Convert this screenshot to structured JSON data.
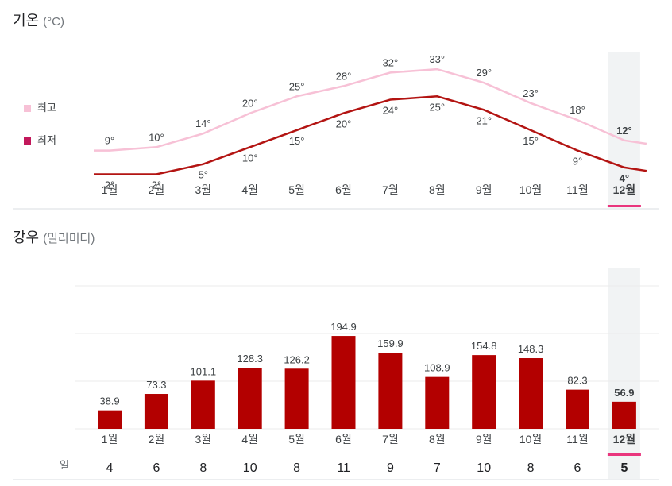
{
  "temperature": {
    "title": "기온",
    "unit": "(°C)",
    "legend_high": "최고",
    "legend_low": "최저"
  },
  "precipitation": {
    "title": "강우",
    "unit": "(밀리미터)",
    "days_label": "일"
  },
  "selected_index": 11,
  "colors": {
    "high": "#f7c1d6",
    "low": "#b31412",
    "bar": "#b30000",
    "highlight": "#e9357d"
  },
  "chart_data": [
    {
      "type": "line",
      "categories": [
        "1월",
        "2월",
        "3월",
        "4월",
        "5월",
        "6월",
        "7월",
        "8월",
        "9월",
        "10월",
        "11월",
        "12월"
      ],
      "series": [
        {
          "name": "최고",
          "values": [
            9,
            10,
            14,
            20,
            25,
            28,
            32,
            33,
            29,
            23,
            18,
            12
          ]
        },
        {
          "name": "최저",
          "values": [
            2,
            2,
            5,
            10,
            15,
            20,
            24,
            25,
            21,
            15,
            9,
            4
          ]
        }
      ],
      "title": "기온",
      "ylabel": "(°C)"
    },
    {
      "type": "bar",
      "categories": [
        "1월",
        "2월",
        "3월",
        "4월",
        "5월",
        "6월",
        "7월",
        "8월",
        "9월",
        "10월",
        "11월",
        "12월"
      ],
      "values": [
        38.9,
        73.3,
        101.1,
        128.3,
        126.2,
        194.9,
        159.9,
        108.9,
        154.8,
        148.3,
        82.3,
        56.9
      ],
      "days": [
        4,
        6,
        8,
        10,
        8,
        11,
        9,
        7,
        10,
        8,
        6,
        5
      ],
      "title": "강우",
      "ylabel": "(밀리미터)",
      "ylim": [
        0,
        200
      ]
    }
  ]
}
